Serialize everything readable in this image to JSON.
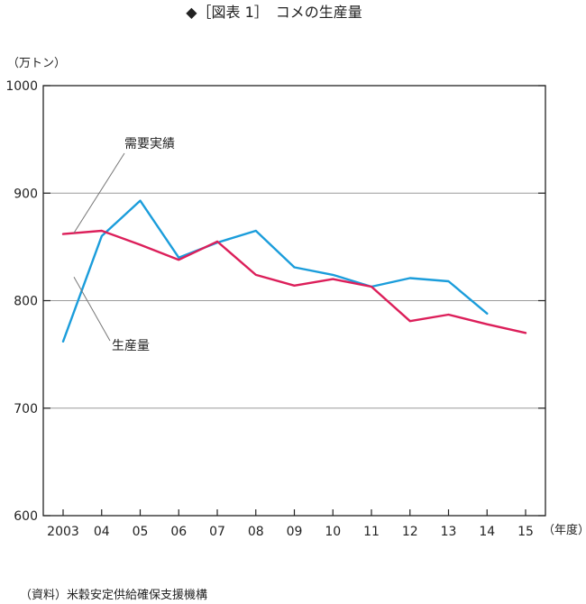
{
  "chart_data": {
    "type": "line",
    "title": "◆［図表 1］　コメの生産量",
    "ylabel": "（万トン）",
    "xlabel": "（年度）",
    "source": "（資料）米穀安定供給確保支援機構",
    "categories": [
      "2003",
      "04",
      "05",
      "06",
      "07",
      "08",
      "09",
      "10",
      "11",
      "12",
      "13",
      "14",
      "15"
    ],
    "ylim": [
      600,
      1000
    ],
    "yticks": [
      "600",
      "700",
      "800",
      "900",
      "1000"
    ],
    "grid": true,
    "series": [
      {
        "name": "需要実績",
        "color": "#dc1f5a",
        "values": [
          862,
          865,
          852,
          838,
          855,
          824,
          814,
          820,
          813,
          781,
          787,
          778,
          770
        ]
      },
      {
        "name": "生産量",
        "color": "#1b9ddb",
        "values": [
          762,
          860,
          893,
          840,
          854,
          865,
          831,
          824,
          813,
          821,
          818,
          788,
          null
        ]
      }
    ]
  }
}
